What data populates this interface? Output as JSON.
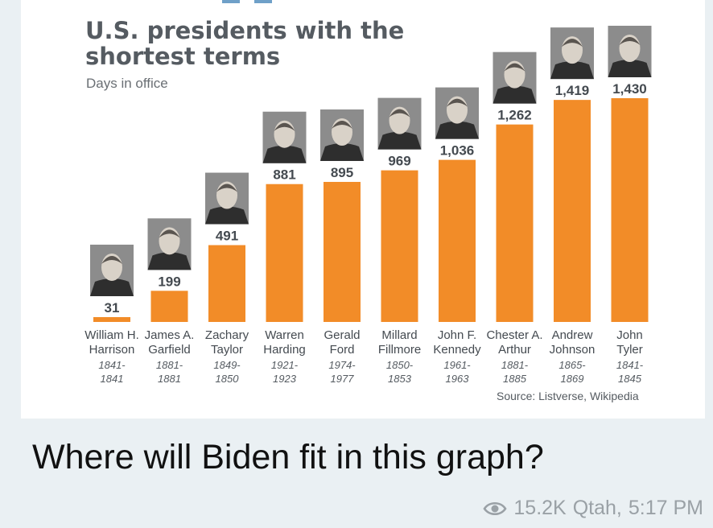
{
  "chart_data": {
    "type": "bar",
    "title": "U.S. presidents with the\nshortest terms",
    "subtitle": "Days in office",
    "categories": [
      {
        "name": [
          "William H.",
          "Harrison"
        ],
        "years": [
          "1841-",
          "1841"
        ]
      },
      {
        "name": [
          "James A.",
          "Garfield"
        ],
        "years": [
          "1881-",
          "1881"
        ]
      },
      {
        "name": [
          "Zachary",
          "Taylor"
        ],
        "years": [
          "1849-",
          "1850"
        ]
      },
      {
        "name": [
          "Warren",
          "Harding"
        ],
        "years": [
          "1921-",
          "1923"
        ]
      },
      {
        "name": [
          "Gerald",
          "Ford"
        ],
        "years": [
          "1974-",
          "1977"
        ]
      },
      {
        "name": [
          "Millard",
          "Fillmore"
        ],
        "years": [
          "1850-",
          "1853"
        ]
      },
      {
        "name": [
          "John F.",
          "Kennedy"
        ],
        "years": [
          "1961-",
          "1963"
        ]
      },
      {
        "name": [
          "Chester A.",
          "Arthur"
        ],
        "years": [
          "1881-",
          "1885"
        ]
      },
      {
        "name": [
          "Andrew",
          "Johnson"
        ],
        "years": [
          "1865-",
          "1869"
        ]
      },
      {
        "name": [
          "John",
          "Tyler"
        ],
        "years": [
          "1841-",
          "1845"
        ]
      }
    ],
    "values": [
      31,
      199,
      491,
      881,
      895,
      969,
      1036,
      1262,
      1419,
      1430
    ],
    "value_labels": [
      "31",
      "199",
      "491",
      "881",
      "895",
      "969",
      "1,036",
      "1,262",
      "1,419",
      "1,430"
    ],
    "source": "Source: Listverse, Wikipedia",
    "bar_color": "#f28c28",
    "label_color": "#444a50",
    "portraits": true
  },
  "post": {
    "question": "Where will Biden fit in this graph?",
    "views": "15.2K",
    "author": "Qtah,",
    "time": "5:17 PM",
    "view_icon": "eye-icon"
  }
}
